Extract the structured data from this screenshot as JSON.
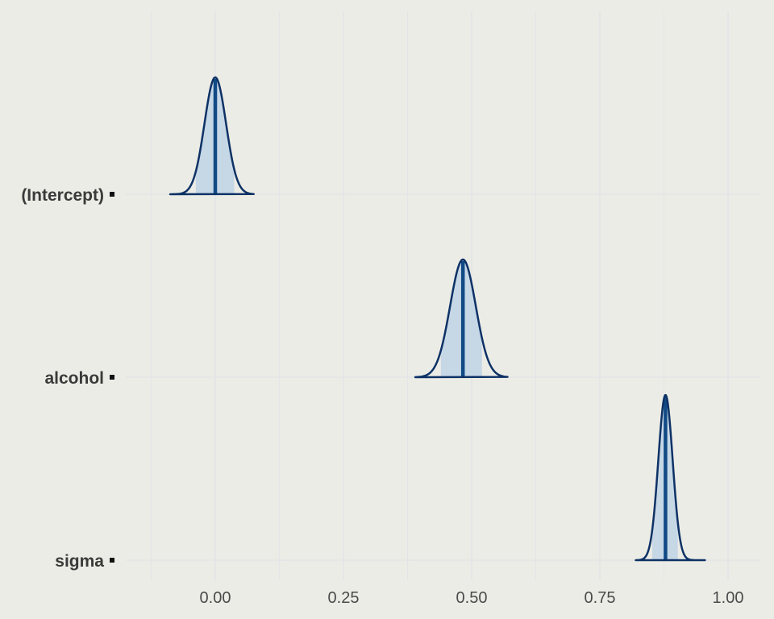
{
  "chart_data": {
    "type": "area",
    "title": "",
    "xlabel": "",
    "ylabel": "",
    "xlim": [
      -0.125,
      1.0625
    ],
    "x_ticks": [
      0.0,
      0.25,
      0.5,
      0.75,
      1.0
    ],
    "x_tick_labels": [
      "0.00",
      "0.25",
      "0.50",
      "0.75",
      "1.00"
    ],
    "grid": true,
    "parameters": [
      {
        "label": "(Intercept)",
        "median": 0.0,
        "inner_interval": [
          -0.038,
          0.037
        ],
        "outer_interval": [
          -0.088,
          0.075
        ],
        "sd": 0.021
      },
      {
        "label": "alcohol",
        "median": 0.483,
        "inner_interval": [
          0.44,
          0.52
        ],
        "outer_interval": [
          0.39,
          0.57
        ],
        "sd": 0.025
      },
      {
        "label": "sigma",
        "median": 0.878,
        "inner_interval": [
          0.852,
          0.902
        ],
        "outer_interval": [
          0.82,
          0.955
        ],
        "sd": 0.014
      }
    ],
    "colors": {
      "background": "#ecece6",
      "grid": "#e3e4e6",
      "outline": "#0e3266",
      "fill": "#c6d7e6",
      "median_line": "#114a85",
      "axis_text": "#3a3a3a"
    }
  }
}
